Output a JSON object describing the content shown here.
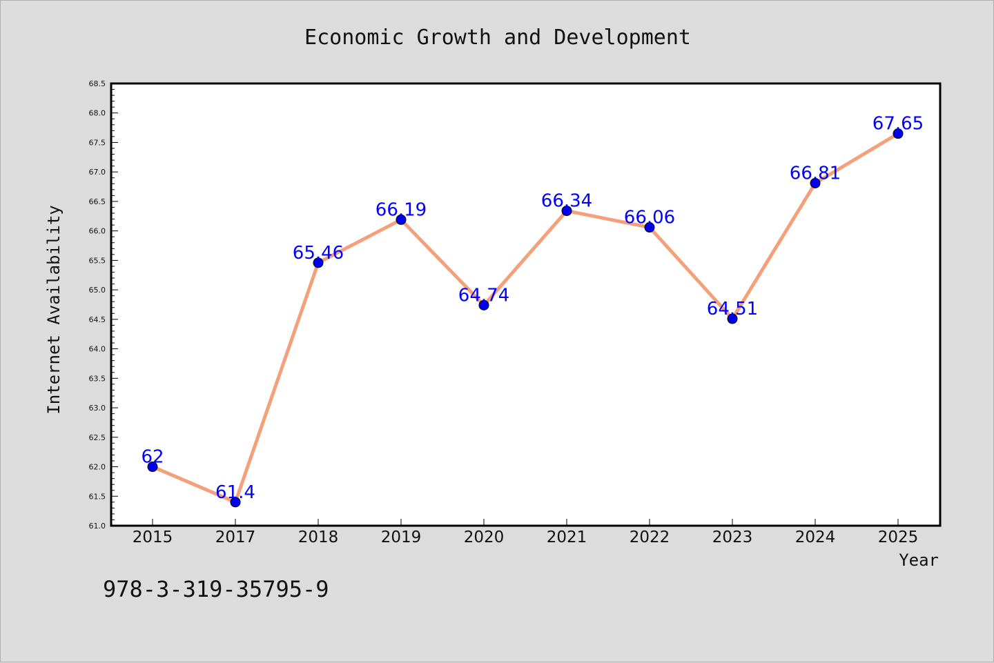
{
  "chart_data": {
    "type": "line",
    "title": "Economic Growth and Development",
    "xlabel": "Year",
    "ylabel": "Internet Availability",
    "categories": [
      "2015",
      "2017",
      "2018",
      "2019",
      "2020",
      "2021",
      "2022",
      "2023",
      "2024",
      "2025"
    ],
    "series": [
      {
        "values": [
          62,
          61.4,
          65.46,
          66.19,
          64.74,
          66.34,
          66.06,
          64.51,
          66.81,
          67.65
        ],
        "labels": [
          "62",
          "61.4",
          "65.46",
          "66.19",
          "64.74",
          "66.34",
          "66.06",
          "64.51",
          "66.81",
          "67.65"
        ],
        "line_color": "#f4a07a",
        "marker_color": "#0000ee",
        "label_color": "#0000ff"
      }
    ],
    "ylim": [
      61.0,
      68.5
    ],
    "yticks": [
      "61.0",
      "61.5",
      "62.0",
      "62.5",
      "63.0",
      "63.5",
      "64.0",
      "64.5",
      "65.0",
      "65.5",
      "66.0",
      "66.5",
      "67.0",
      "67.5",
      "68.0",
      "68.5"
    ],
    "grid": false,
    "legend": "none"
  },
  "footer": {
    "isbn": "978-3-319-35795-9"
  },
  "colors": {
    "background": "#dcdcdc",
    "plot_background": "#ffffff",
    "axis": "#000000"
  }
}
